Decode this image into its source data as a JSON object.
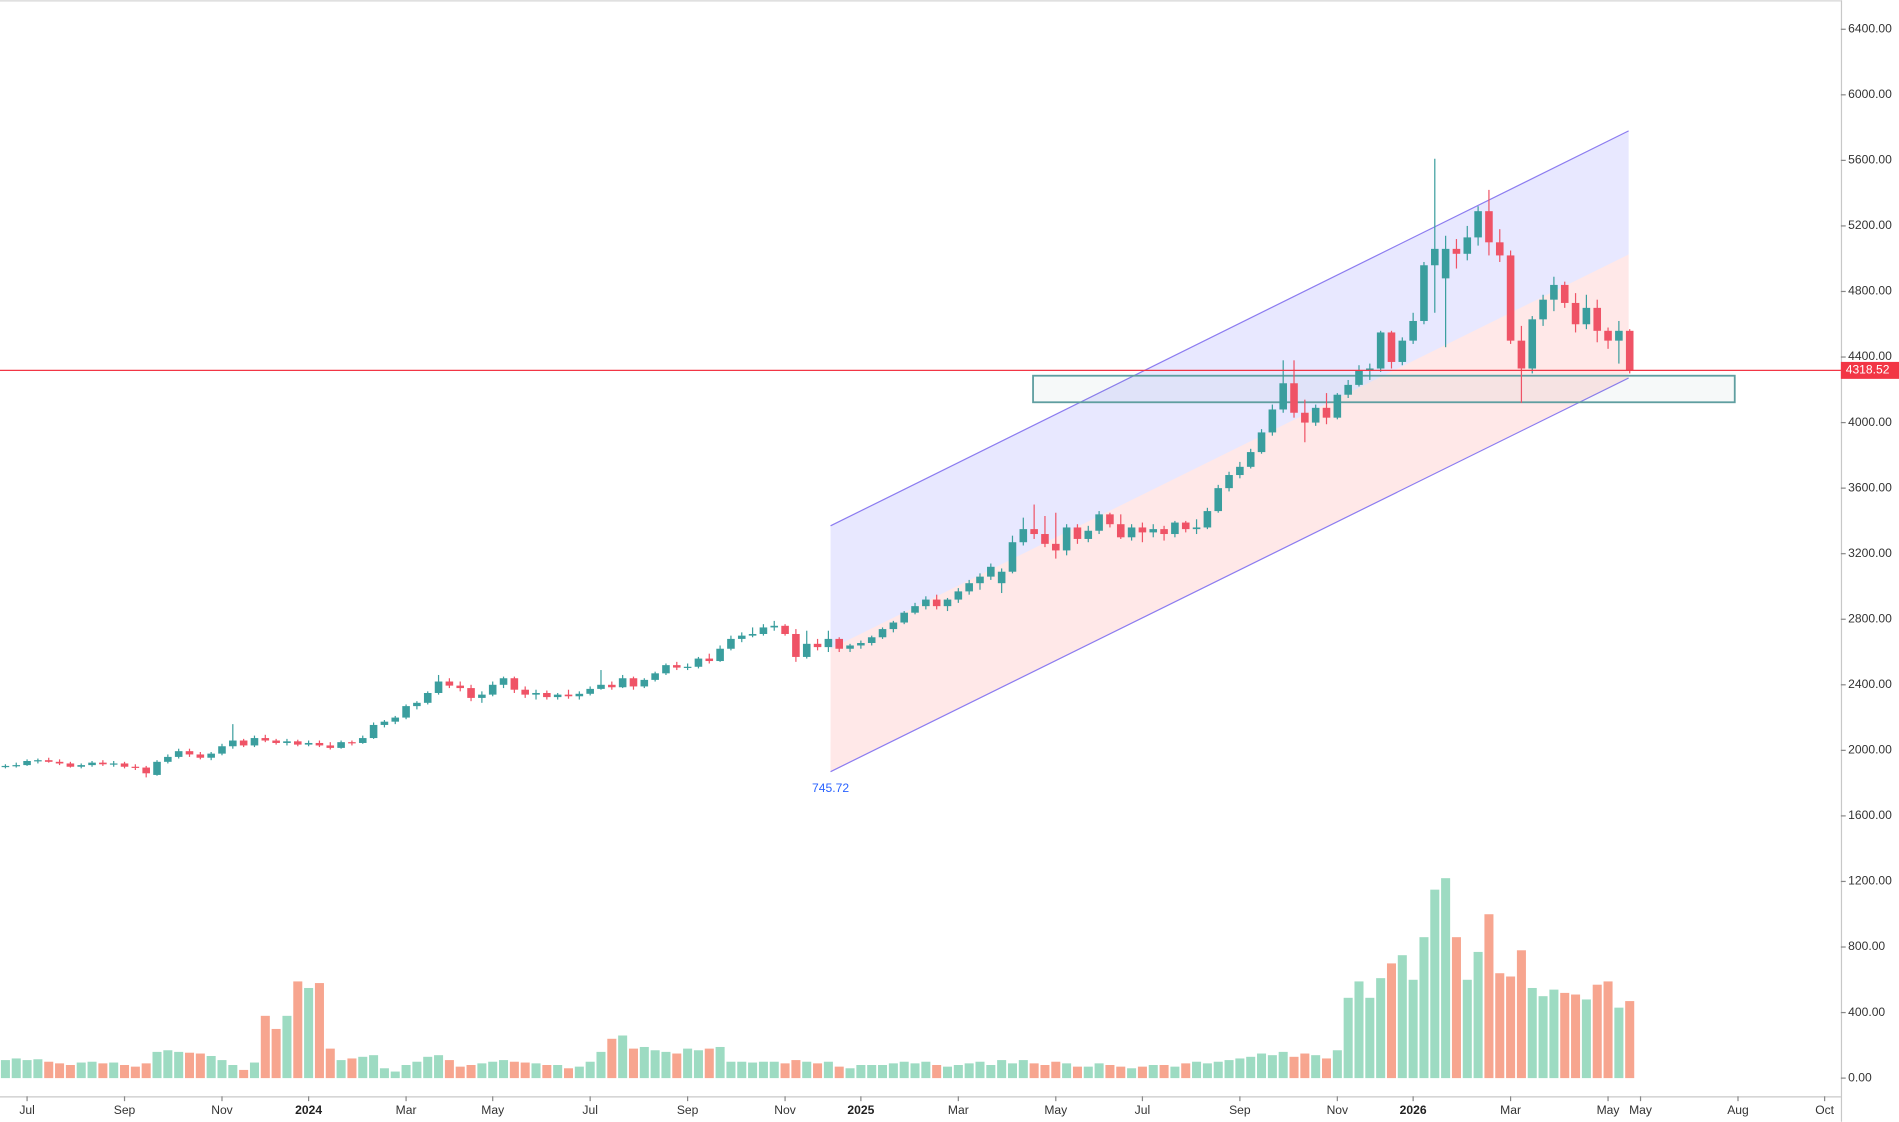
{
  "chart_data": {
    "type": "candlestick",
    "up_color": "#3a9e9e",
    "down_color": "#ef5366",
    "volume_up_color": "#9ddbc2",
    "volume_down_color": "#f7a58f",
    "x": [
      0,
      1,
      2,
      3,
      4,
      5,
      6,
      7,
      8,
      9,
      10,
      11,
      12,
      13,
      14,
      15,
      16,
      17,
      18,
      19,
      20,
      21,
      22,
      23,
      24,
      25,
      26,
      27,
      28,
      29,
      30,
      31,
      32,
      33,
      34,
      35,
      36,
      37,
      38,
      39,
      40,
      41,
      42,
      43,
      44,
      45,
      46,
      47,
      48,
      49,
      50,
      51,
      52,
      53,
      54,
      55,
      56,
      57,
      58,
      59,
      60,
      61,
      62,
      63,
      64,
      65,
      66,
      67,
      68,
      69,
      70,
      71,
      72,
      73,
      74,
      75,
      76,
      77,
      78,
      79,
      80,
      81,
      82,
      83,
      84,
      85,
      86,
      87,
      88,
      89,
      90,
      91,
      92,
      93,
      94,
      95,
      96,
      97,
      98,
      99,
      100,
      101,
      102,
      103,
      104,
      105,
      106,
      107,
      108,
      109,
      110,
      111,
      112,
      113,
      114,
      115,
      116,
      117,
      118,
      119,
      120,
      121,
      122,
      123,
      124,
      125,
      126,
      127,
      128,
      129,
      130,
      131,
      132,
      133,
      134,
      135,
      136,
      137,
      138,
      139,
      140,
      141,
      142,
      143,
      144,
      145,
      146,
      147,
      148,
      149,
      150
    ],
    "candles": [
      [
        1900,
        1915,
        1890,
        1905
      ],
      [
        1905,
        1925,
        1895,
        1910
      ],
      [
        1910,
        1945,
        1905,
        1935
      ],
      [
        1935,
        1950,
        1920,
        1940
      ],
      [
        1940,
        1955,
        1925,
        1930
      ],
      [
        1930,
        1945,
        1910,
        1920
      ],
      [
        1920,
        1930,
        1895,
        1900
      ],
      [
        1900,
        1920,
        1890,
        1910
      ],
      [
        1910,
        1935,
        1900,
        1925
      ],
      [
        1925,
        1940,
        1905,
        1915
      ],
      [
        1915,
        1935,
        1900,
        1920
      ],
      [
        1920,
        1930,
        1890,
        1900
      ],
      [
        1900,
        1915,
        1880,
        1895
      ],
      [
        1895,
        1905,
        1835,
        1860
      ],
      [
        1850,
        1940,
        1845,
        1930
      ],
      [
        1930,
        1975,
        1920,
        1960
      ],
      [
        1960,
        2010,
        1950,
        1995
      ],
      [
        1995,
        2010,
        1960,
        1975
      ],
      [
        1975,
        1990,
        1945,
        1955
      ],
      [
        1955,
        1990,
        1940,
        1980
      ],
      [
        1980,
        2040,
        1970,
        2025
      ],
      [
        2025,
        2160,
        2010,
        2060
      ],
      [
        2060,
        2070,
        2020,
        2030
      ],
      [
        2030,
        2090,
        2020,
        2075
      ],
      [
        2075,
        2095,
        2050,
        2060
      ],
      [
        2060,
        2070,
        2035,
        2045
      ],
      [
        2045,
        2070,
        2030,
        2055
      ],
      [
        2055,
        2065,
        2025,
        2035
      ],
      [
        2035,
        2060,
        2025,
        2045
      ],
      [
        2045,
        2060,
        2020,
        2030
      ],
      [
        2030,
        2050,
        2005,
        2015
      ],
      [
        2015,
        2060,
        2010,
        2050
      ],
      [
        2050,
        2060,
        2030,
        2045
      ],
      [
        2045,
        2090,
        2040,
        2075
      ],
      [
        2075,
        2170,
        2070,
        2155
      ],
      [
        2155,
        2185,
        2140,
        2175
      ],
      [
        2175,
        2210,
        2160,
        2200
      ],
      [
        2200,
        2280,
        2190,
        2270
      ],
      [
        2270,
        2300,
        2250,
        2290
      ],
      [
        2290,
        2360,
        2280,
        2350
      ],
      [
        2350,
        2460,
        2340,
        2420
      ],
      [
        2420,
        2440,
        2380,
        2395
      ],
      [
        2395,
        2420,
        2360,
        2380
      ],
      [
        2380,
        2400,
        2300,
        2320
      ],
      [
        2320,
        2360,
        2290,
        2340
      ],
      [
        2340,
        2420,
        2330,
        2400
      ],
      [
        2400,
        2450,
        2380,
        2440
      ],
      [
        2440,
        2450,
        2350,
        2370
      ],
      [
        2370,
        2390,
        2320,
        2340
      ],
      [
        2340,
        2370,
        2310,
        2350
      ],
      [
        2350,
        2365,
        2310,
        2325
      ],
      [
        2325,
        2350,
        2310,
        2340
      ],
      [
        2340,
        2370,
        2315,
        2330
      ],
      [
        2330,
        2360,
        2310,
        2345
      ],
      [
        2345,
        2390,
        2335,
        2375
      ],
      [
        2375,
        2490,
        2370,
        2400
      ],
      [
        2400,
        2420,
        2370,
        2385
      ],
      [
        2385,
        2460,
        2380,
        2440
      ],
      [
        2440,
        2450,
        2370,
        2390
      ],
      [
        2390,
        2440,
        2380,
        2430
      ],
      [
        2430,
        2480,
        2420,
        2470
      ],
      [
        2470,
        2530,
        2460,
        2520
      ],
      [
        2520,
        2540,
        2490,
        2505
      ],
      [
        2505,
        2530,
        2490,
        2510
      ],
      [
        2510,
        2570,
        2500,
        2560
      ],
      [
        2560,
        2590,
        2530,
        2545
      ],
      [
        2545,
        2640,
        2540,
        2620
      ],
      [
        2620,
        2700,
        2610,
        2680
      ],
      [
        2680,
        2720,
        2660,
        2700
      ],
      [
        2700,
        2750,
        2690,
        2710
      ],
      [
        2710,
        2770,
        2700,
        2750
      ],
      [
        2750,
        2790,
        2730,
        2760
      ],
      [
        2760,
        2770,
        2700,
        2710
      ],
      [
        2710,
        2740,
        2540,
        2570
      ],
      [
        2570,
        2730,
        2560,
        2650
      ],
      [
        2650,
        2680,
        2610,
        2630
      ],
      [
        2630,
        2730,
        2600,
        2680
      ],
      [
        2680,
        2690,
        2600,
        2620
      ],
      [
        2620,
        2650,
        2600,
        2640
      ],
      [
        2640,
        2670,
        2620,
        2655
      ],
      [
        2655,
        2700,
        2640,
        2690
      ],
      [
        2690,
        2750,
        2680,
        2740
      ],
      [
        2740,
        2790,
        2720,
        2780
      ],
      [
        2780,
        2850,
        2770,
        2840
      ],
      [
        2840,
        2900,
        2830,
        2880
      ],
      [
        2880,
        2940,
        2860,
        2920
      ],
      [
        2920,
        2950,
        2860,
        2880
      ],
      [
        2880,
        2930,
        2850,
        2920
      ],
      [
        2920,
        2990,
        2900,
        2970
      ],
      [
        2970,
        3040,
        2950,
        3020
      ],
      [
        3020,
        3080,
        2980,
        3060
      ],
      [
        3060,
        3140,
        3040,
        3120
      ],
      [
        3020,
        3110,
        2960,
        3090
      ],
      [
        3090,
        3310,
        3080,
        3270
      ],
      [
        3270,
        3420,
        3250,
        3350
      ],
      [
        3350,
        3500,
        3290,
        3320
      ],
      [
        3320,
        3430,
        3240,
        3260
      ],
      [
        3260,
        3450,
        3170,
        3220
      ],
      [
        3220,
        3380,
        3190,
        3360
      ],
      [
        3360,
        3380,
        3260,
        3290
      ],
      [
        3290,
        3370,
        3270,
        3340
      ],
      [
        3340,
        3460,
        3320,
        3440
      ],
      [
        3440,
        3450,
        3360,
        3380
      ],
      [
        3380,
        3440,
        3290,
        3300
      ],
      [
        3300,
        3380,
        3280,
        3360
      ],
      [
        3360,
        3390,
        3270,
        3330
      ],
      [
        3330,
        3380,
        3300,
        3350
      ],
      [
        3350,
        3370,
        3280,
        3320
      ],
      [
        3320,
        3400,
        3300,
        3390
      ],
      [
        3390,
        3400,
        3330,
        3350
      ],
      [
        3350,
        3410,
        3320,
        3360
      ],
      [
        3360,
        3480,
        3350,
        3460
      ],
      [
        3460,
        3620,
        3450,
        3600
      ],
      [
        3600,
        3700,
        3580,
        3680
      ],
      [
        3680,
        3760,
        3660,
        3730
      ],
      [
        3730,
        3840,
        3720,
        3820
      ],
      [
        3820,
        3960,
        3810,
        3940
      ],
      [
        3940,
        4110,
        3920,
        4080
      ],
      [
        4080,
        4380,
        4060,
        4240
      ],
      [
        4240,
        4380,
        4030,
        4060
      ],
      [
        4060,
        4140,
        3880,
        4000
      ],
      [
        4000,
        4110,
        3980,
        4090
      ],
      [
        4090,
        4180,
        3990,
        4030
      ],
      [
        4030,
        4180,
        4020,
        4170
      ],
      [
        4170,
        4260,
        4150,
        4230
      ],
      [
        4230,
        4350,
        4220,
        4320
      ],
      [
        4320,
        4360,
        4260,
        4330
      ],
      [
        4330,
        4560,
        4310,
        4550
      ],
      [
        4550,
        4560,
        4330,
        4370
      ],
      [
        4370,
        4520,
        4350,
        4500
      ],
      [
        4500,
        4670,
        4480,
        4620
      ],
      [
        4620,
        4980,
        4600,
        4960
      ],
      [
        4960,
        5610,
        4670,
        5060
      ],
      [
        4880,
        5140,
        4460,
        5060
      ],
      [
        5060,
        5120,
        4940,
        5030
      ],
      [
        5030,
        5200,
        4990,
        5130
      ],
      [
        5130,
        5320,
        5080,
        5290
      ],
      [
        5290,
        5420,
        5020,
        5100
      ],
      [
        5100,
        5180,
        4980,
        5020
      ],
      [
        5020,
        5050,
        4480,
        4500
      ],
      [
        4500,
        4590,
        4120,
        4330
      ],
      [
        4330,
        4650,
        4300,
        4630
      ],
      [
        4630,
        4780,
        4590,
        4750
      ],
      [
        4750,
        4890,
        4680,
        4840
      ],
      [
        4840,
        4860,
        4700,
        4730
      ],
      [
        4730,
        4790,
        4550,
        4600
      ],
      [
        4600,
        4780,
        4570,
        4700
      ],
      [
        4700,
        4750,
        4490,
        4560
      ],
      [
        4560,
        4580,
        4450,
        4500
      ],
      [
        4500,
        4620,
        4360,
        4560
      ],
      [
        4560,
        4570,
        4300,
        4318.52
      ]
    ],
    "volume": [
      110,
      120,
      110,
      115,
      100,
      90,
      80,
      95,
      100,
      90,
      95,
      80,
      70,
      90,
      160,
      170,
      160,
      155,
      150,
      135,
      110,
      80,
      50,
      95,
      380,
      300,
      380,
      590,
      550,
      580,
      180,
      110,
      120,
      130,
      140,
      60,
      40,
      80,
      100,
      130,
      140,
      110,
      70,
      80,
      90,
      100,
      110,
      100,
      95,
      90,
      80,
      80,
      60,
      70,
      100,
      160,
      240,
      260,
      180,
      190,
      170,
      160,
      150,
      180,
      170,
      180,
      190,
      100,
      100,
      95,
      100,
      100,
      90,
      110,
      100,
      90,
      100,
      70,
      60,
      80,
      80,
      80,
      90,
      100,
      90,
      100,
      80,
      70,
      80,
      90,
      100,
      80,
      110,
      90,
      110,
      90,
      80,
      100,
      90,
      70,
      70,
      90,
      80,
      70,
      60,
      70,
      80,
      80,
      70,
      90,
      100,
      90,
      100,
      110,
      120,
      130,
      150,
      140,
      160,
      130,
      150,
      140,
      120,
      170,
      490,
      590,
      490,
      610,
      700,
      750,
      600,
      860,
      1150,
      1220,
      860,
      600,
      770,
      1000,
      640,
      620,
      780,
      550,
      500,
      540,
      520,
      510,
      480,
      570,
      590,
      430,
      470
    ],
    "xlim": [
      -0.5,
      169.5
    ],
    "ylim": [
      -111,
      6577
    ],
    "xticks": [
      {
        "value": 2,
        "label": "Jul"
      },
      {
        "value": 11,
        "label": "Sep"
      },
      {
        "value": 20,
        "label": "Nov"
      },
      {
        "value": 28,
        "label": "2024"
      },
      {
        "value": 37,
        "label": "Mar"
      },
      {
        "value": 45,
        "label": "May"
      },
      {
        "value": 54,
        "label": "Jul"
      },
      {
        "value": 63,
        "label": "Sep"
      },
      {
        "value": 72,
        "label": "Nov"
      },
      {
        "value": 79,
        "label": "2025"
      },
      {
        "value": 88,
        "label": "Mar"
      },
      {
        "value": 97,
        "label": "May"
      },
      {
        "value": 105,
        "label": "Jul"
      },
      {
        "value": 114,
        "label": "Sep"
      },
      {
        "value": 123,
        "label": "Nov"
      },
      {
        "value": 130,
        "label": "2026"
      },
      {
        "value": 139,
        "label": "Mar"
      },
      {
        "value": 148,
        "label": "May"
      },
      {
        "value": 151,
        "label": "May"
      },
      {
        "value": 160,
        "label": "Aug"
      },
      {
        "value": 168,
        "label": "Oct"
      }
    ],
    "yticks": [
      {
        "value": 0,
        "label": "0.00"
      },
      {
        "value": 400,
        "label": "400.00"
      },
      {
        "value": 800,
        "label": "800.00"
      },
      {
        "value": 1200,
        "label": "1200.00"
      },
      {
        "value": 1600,
        "label": "1600.00"
      },
      {
        "value": 2000,
        "label": "2000.00"
      },
      {
        "value": 2400,
        "label": "2400.00"
      },
      {
        "value": 2800,
        "label": "2800.00"
      },
      {
        "value": 3200,
        "label": "3200.00"
      },
      {
        "value": 3600,
        "label": "3600.00"
      },
      {
        "value": 4000,
        "label": "4000.00"
      },
      {
        "value": 4400,
        "label": "4400.00"
      },
      {
        "value": 4800,
        "label": "4800.00"
      },
      {
        "value": 5200,
        "label": "5200.00"
      },
      {
        "value": 5600,
        "label": "5600.00"
      },
      {
        "value": 6000,
        "label": "6000.00"
      },
      {
        "value": 6400,
        "label": "6400.00"
      }
    ],
    "current_price": 4318.52,
    "current_price_color": "#f23645",
    "channel": {
      "x": [
        76.2,
        149.9
      ],
      "upper": [
        3370,
        5780
      ],
      "lower": [
        1870,
        4272
      ],
      "label": "745.72",
      "line_color": "#8c7cf0"
    },
    "zone": {
      "x": [
        94.9,
        159.7
      ],
      "y": [
        4124,
        4286
      ],
      "color": "#5f9ea0"
    }
  }
}
